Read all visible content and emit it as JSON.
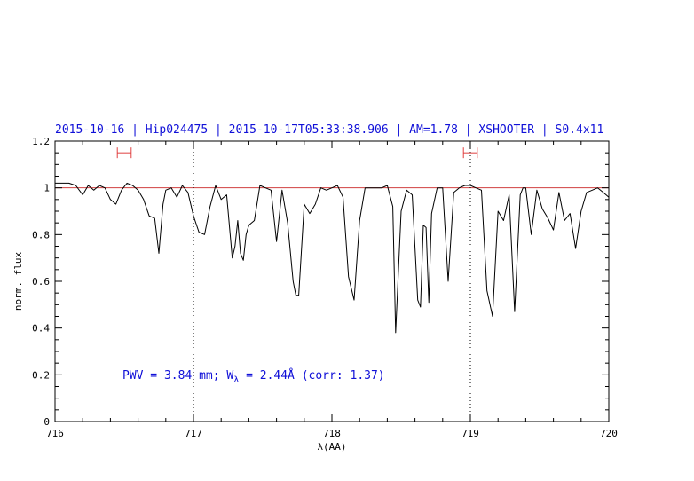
{
  "chart_data": {
    "type": "line",
    "title": "2015-10-16 | Hip024475 | 2015-10-17T05:33:38.906 | AM=1.78 | XSHOOTER | S0.4x11",
    "xlabel": "λ(AA)",
    "ylabel": "norm. flux",
    "xlim": [
      716,
      720
    ],
    "ylim": [
      0,
      1.2
    ],
    "x_ticks": [
      "716",
      "717",
      "718",
      "719",
      "720"
    ],
    "y_ticks": [
      "0",
      "0.2",
      "0.4",
      "0.6",
      "0.8",
      "1",
      "1.2"
    ],
    "reference_line": {
      "y": 1.0,
      "color": "#d04040"
    },
    "vertical_markers": [
      717.0,
      719.0
    ],
    "intervals": [
      {
        "x": [
          716.45,
          716.55
        ],
        "y": 1.15,
        "color": "#e04040"
      },
      {
        "x": [
          718.95,
          719.05
        ],
        "y": 1.15,
        "color": "#e04040"
      }
    ],
    "annotation": {
      "pwv_text": "PWV = 3.84 mm; W",
      "sub": "λ",
      "rest": " = 2.44Å (corr: 1.37)"
    },
    "series": [
      {
        "color": "#000000",
        "x": [
          716.0,
          716.05,
          716.1,
          716.15,
          716.2,
          716.24,
          716.28,
          716.32,
          716.36,
          716.4,
          716.44,
          716.48,
          716.52,
          716.56,
          716.6,
          716.64,
          716.68,
          716.72,
          716.75,
          716.78,
          716.8,
          716.84,
          716.88,
          716.92,
          716.96,
          717.0,
          717.04,
          717.08,
          717.12,
          717.16,
          717.2,
          717.24,
          717.28,
          717.3,
          717.32,
          717.34,
          717.36,
          717.38,
          717.4,
          717.44,
          717.48,
          717.52,
          717.56,
          717.6,
          717.64,
          717.68,
          717.72,
          717.74,
          717.76,
          717.8,
          717.84,
          717.88,
          717.92,
          717.96,
          718.0,
          718.04,
          718.08,
          718.12,
          718.16,
          718.2,
          718.24,
          718.28,
          718.32,
          718.36,
          718.4,
          718.44,
          718.46,
          718.5,
          718.54,
          718.58,
          718.62,
          718.64,
          718.66,
          718.68,
          718.7,
          718.72,
          718.76,
          718.8,
          718.84,
          718.88,
          718.92,
          718.96,
          719.0,
          719.04,
          719.08,
          719.12,
          719.16,
          719.2,
          719.24,
          719.28,
          719.32,
          719.36,
          719.38,
          719.4,
          719.44,
          719.48,
          719.52,
          719.56,
          719.6,
          719.64,
          719.68,
          719.72,
          719.76,
          719.8,
          719.84,
          719.88,
          719.92,
          719.96,
          720.0
        ],
        "y": [
          1.02,
          1.02,
          1.02,
          1.01,
          0.97,
          1.01,
          0.99,
          1.01,
          1.0,
          0.95,
          0.93,
          0.99,
          1.02,
          1.01,
          0.99,
          0.95,
          0.88,
          0.87,
          0.72,
          0.93,
          0.99,
          1.0,
          0.96,
          1.01,
          0.98,
          0.88,
          0.81,
          0.8,
          0.92,
          1.01,
          0.95,
          0.97,
          0.7,
          0.75,
          0.86,
          0.72,
          0.69,
          0.8,
          0.84,
          0.86,
          1.01,
          1.0,
          0.99,
          0.77,
          0.99,
          0.85,
          0.6,
          0.54,
          0.54,
          0.93,
          0.89,
          0.93,
          1.0,
          0.99,
          1.0,
          1.01,
          0.96,
          0.62,
          0.52,
          0.86,
          1.0,
          1.0,
          1.0,
          1.0,
          1.01,
          0.92,
          0.38,
          0.9,
          0.99,
          0.97,
          0.52,
          0.49,
          0.84,
          0.83,
          0.51,
          0.89,
          1.0,
          1.0,
          0.6,
          0.98,
          1.0,
          1.01,
          1.01,
          1.0,
          0.99,
          0.56,
          0.45,
          0.9,
          0.86,
          0.97,
          0.47,
          0.97,
          1.0,
          1.0,
          0.8,
          0.99,
          0.91,
          0.87,
          0.82,
          0.98,
          0.86,
          0.89,
          0.74,
          0.9,
          0.98,
          0.99,
          1.0,
          0.98,
          0.96
        ]
      }
    ]
  }
}
